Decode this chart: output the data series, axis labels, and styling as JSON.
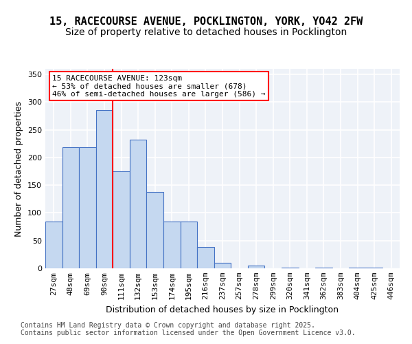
{
  "title_line1": "15, RACECOURSE AVENUE, POCKLINGTON, YORK, YO42 2FW",
  "title_line2": "Size of property relative to detached houses in Pocklington",
  "xlabel": "Distribution of detached houses by size in Pocklington",
  "ylabel": "Number of detached properties",
  "bins": [
    "27sqm",
    "48sqm",
    "69sqm",
    "90sqm",
    "111sqm",
    "132sqm",
    "153sqm",
    "174sqm",
    "195sqm",
    "216sqm",
    "237sqm",
    "257sqm",
    "278sqm",
    "299sqm",
    "320sqm",
    "341sqm",
    "362sqm",
    "383sqm",
    "404sqm",
    "425sqm",
    "446sqm"
  ],
  "bar_heights": [
    85,
    218,
    218,
    285,
    175,
    232,
    138,
    85,
    85,
    38,
    10,
    0,
    5,
    0,
    1,
    0,
    1,
    0,
    1,
    1,
    0
  ],
  "bar_color": "#c5d8f0",
  "bar_edge_color": "#4472c4",
  "property_line_x": 3.5,
  "property_line_label": "15 RACECOURSE AVENUE: 123sqm",
  "annotation_line1": "← 53% of detached houses are smaller (678)",
  "annotation_line2": "46% of semi-detached houses are larger (586) →",
  "annotation_box_color": "white",
  "annotation_box_edge_color": "red",
  "vline_color": "red",
  "ylim": [
    0,
    360
  ],
  "yticks": [
    0,
    50,
    100,
    150,
    200,
    250,
    300,
    350
  ],
  "background_color": "#eef2f8",
  "grid_color": "#ffffff",
  "footer_line1": "Contains HM Land Registry data © Crown copyright and database right 2025.",
  "footer_line2": "Contains public sector information licensed under the Open Government Licence v3.0.",
  "title_fontsize": 11,
  "subtitle_fontsize": 10,
  "axis_label_fontsize": 9,
  "tick_fontsize": 8,
  "annotation_fontsize": 8,
  "footer_fontsize": 7
}
